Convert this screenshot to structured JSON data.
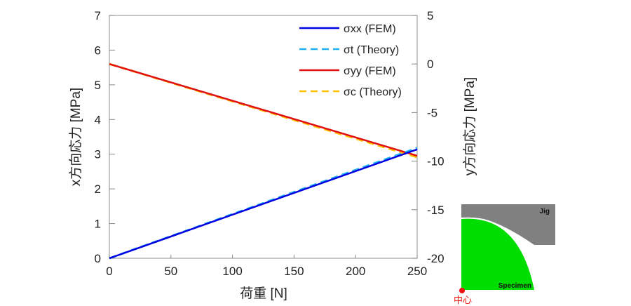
{
  "chart_data": {
    "type": "line",
    "xlabel": "荷重 [N]",
    "ylabel_left": "x方向応力 [MPa]",
    "ylabel_right": "y方向応力 [MPa]",
    "xlim": [
      0,
      250
    ],
    "ylim_left": [
      0,
      7
    ],
    "ylim_right": [
      -20,
      5
    ],
    "x_ticks": [
      "0",
      "50",
      "100",
      "150",
      "200",
      "250"
    ],
    "y_left_ticks": [
      "0",
      "1",
      "2",
      "3",
      "4",
      "5",
      "6",
      "7"
    ],
    "y_right_ticks": [
      "-20",
      "-15",
      "-10",
      "-5",
      "0",
      "5"
    ],
    "grid": false,
    "legend_position": "top-right",
    "series": [
      {
        "name": "σxx (FEM)",
        "axis": "left",
        "style": "solid",
        "color": "#0000e0",
        "x": [
          0,
          250
        ],
        "y": [
          0,
          3.14
        ]
      },
      {
        "name": "σt (Theory)",
        "axis": "left",
        "style": "dashed",
        "color": "#1eb4f0",
        "x": [
          0,
          250
        ],
        "y": [
          0,
          3.18
        ]
      },
      {
        "name": "σyy (FEM)",
        "axis": "right",
        "style": "solid",
        "color": "#e01010",
        "x": [
          0,
          250
        ],
        "y": [
          0,
          -9.45
        ]
      },
      {
        "name": "σc (Theory)",
        "axis": "right",
        "style": "dashed",
        "color": "#ffc000",
        "x": [
          0,
          250
        ],
        "y": [
          0,
          -9.6
        ]
      }
    ]
  },
  "inset": {
    "jig_label": "Jig",
    "specimen_label": "Specimen",
    "center_label": "中心",
    "jig_color": "#808080",
    "specimen_color": "#00dd00",
    "center_color": "#ee1111"
  }
}
